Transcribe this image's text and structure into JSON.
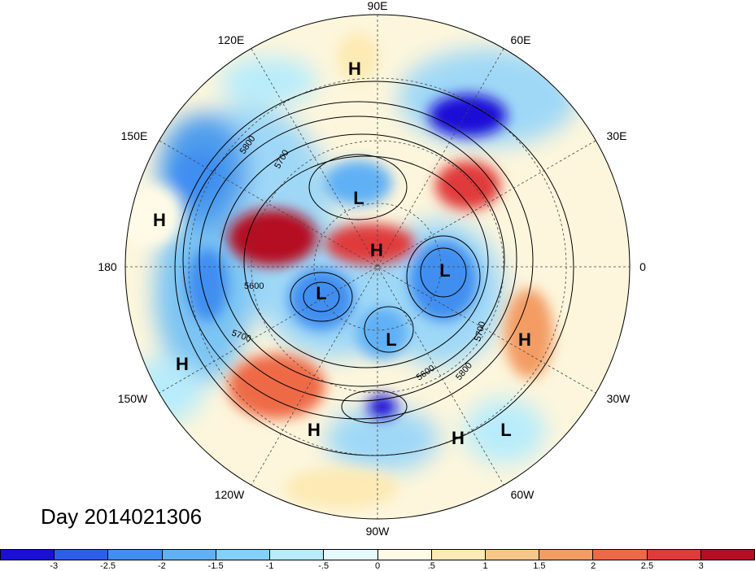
{
  "title": "Day 2014021306",
  "longitude_labels": {
    "top": "90E",
    "top_left": "120E",
    "top_right": "60E",
    "upper_left": "150E",
    "upper_right": "30E",
    "left": "180",
    "right": "0",
    "lower_left": "150W",
    "lower_right": "30W",
    "bottom_left": "120W",
    "bottom_right": "60W",
    "bottom": "90W"
  },
  "pressure_centers": [
    {
      "type": "H",
      "label": "H"
    },
    {
      "type": "H",
      "label": "H"
    },
    {
      "type": "H",
      "label": "H"
    },
    {
      "type": "H",
      "label": "H"
    },
    {
      "type": "H",
      "label": "H"
    },
    {
      "type": "H",
      "label": "H"
    },
    {
      "type": "H",
      "label": "H"
    },
    {
      "type": "L",
      "label": "L"
    },
    {
      "type": "L",
      "label": "L"
    },
    {
      "type": "L",
      "label": "L"
    },
    {
      "type": "L",
      "label": "L"
    },
    {
      "type": "L",
      "label": "L"
    }
  ],
  "contour_labels": [
    "5800",
    "5700",
    "5600",
    "5600",
    "5700",
    "5700",
    "5600",
    "5800"
  ],
  "colorbar": {
    "tick_labels": [
      "-3",
      "-2.5",
      "-2",
      "-1.5",
      "-1",
      "-.5",
      "0",
      ".5",
      "1",
      "1.5",
      "2",
      "2.5",
      "3"
    ],
    "colors": [
      "#1a0fd6",
      "#2c5ee8",
      "#3f8ef0",
      "#5fb0f5",
      "#84d0f8",
      "#b8ecfb",
      "#e6f9fd",
      "#fffbe6",
      "#fdeab4",
      "#f7c78a",
      "#f39c63",
      "#ee6a47",
      "#e03a3a",
      "#b50d23"
    ]
  }
}
